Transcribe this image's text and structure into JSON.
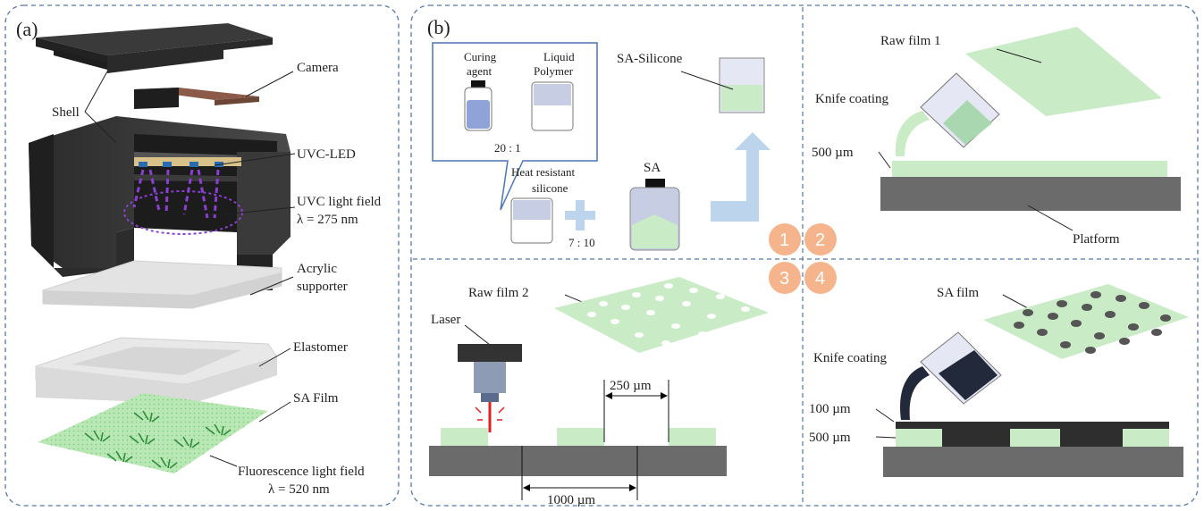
{
  "panel_a": {
    "tag": "(a)",
    "labels": {
      "camera": "Camera",
      "shell": "Shell",
      "uvc_led": "UVC-LED",
      "uvc_field": "UVC light field",
      "uvc_wavelength": "λ = 275 nm",
      "acrylic_1": "Acrylic",
      "acrylic_2": "supporter",
      "elastomer": "Elastomer",
      "sa_film": "SA Film",
      "fluor_field": "Fluorescence light field",
      "fluor_wavelength": "λ = 520 nm"
    }
  },
  "panel_b": {
    "tag": "(b)",
    "step1": {
      "curing_agent_1": "Curing",
      "curing_agent_2": "agent",
      "liquid_polymer_1": "Liquid",
      "liquid_polymer_2": "Polymer",
      "ratio_1": "20 : 1",
      "heat_resistant_1": "Heat resistant",
      "heat_resistant_2": "silicone",
      "plus_ratio": "7 : 10",
      "sa": "SA",
      "sa_silicone": "SA-Silicone"
    },
    "step2": {
      "raw_film": "Raw film  1",
      "knife_coating": "Knife  coating",
      "thickness": "500 µm",
      "platform": "Platform"
    },
    "step3": {
      "raw_film": "Raw film  2",
      "laser": "Laser",
      "gap": "250 µm",
      "pitch": "1000 µm"
    },
    "step4": {
      "sa_film": "SA film",
      "knife_coating": "Knife  coating",
      "thickness_top": "100 µm",
      "thickness_bottom": "500 µm"
    },
    "step_numbers": [
      "1",
      "2",
      "3",
      "4"
    ]
  },
  "colors": {
    "green_film": "#c9ecc7",
    "dark_gray": "#6b6b6b",
    "black_part": "#2e2e2e",
    "uv_purple": "#8a3fd1",
    "step_circle": "#f6b48c",
    "arrow_blue": "#bcd5ec",
    "panel_border": "#5577aa"
  }
}
